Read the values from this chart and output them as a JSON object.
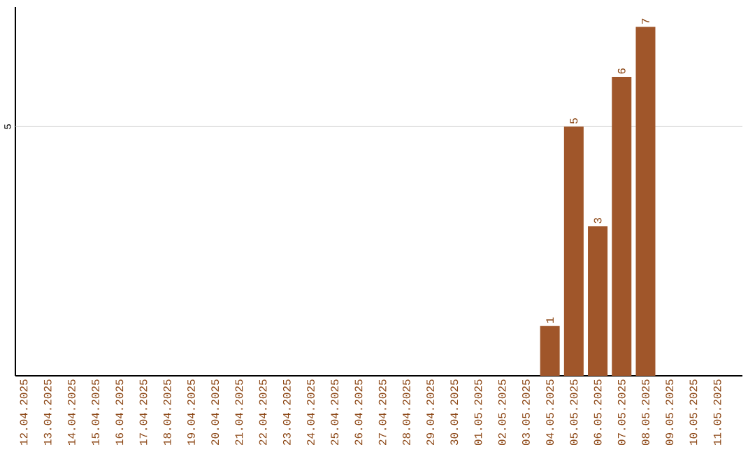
{
  "chart_data": {
    "type": "bar",
    "categories": [
      "12.04.2025",
      "13.04.2025",
      "14.04.2025",
      "15.04.2025",
      "16.04.2025",
      "17.04.2025",
      "18.04.2025",
      "19.04.2025",
      "20.04.2025",
      "21.04.2025",
      "22.04.2025",
      "23.04.2025",
      "24.04.2025",
      "25.04.2025",
      "26.04.2025",
      "27.04.2025",
      "28.04.2025",
      "29.04.2025",
      "30.04.2025",
      "01.05.2025",
      "02.05.2025",
      "03.05.2025",
      "04.05.2025",
      "05.05.2025",
      "06.05.2025",
      "07.05.2025",
      "08.05.2025",
      "09.05.2025",
      "10.05.2025",
      "11.05.2025"
    ],
    "values": [
      null,
      null,
      null,
      null,
      null,
      null,
      null,
      null,
      null,
      null,
      null,
      null,
      null,
      null,
      null,
      null,
      null,
      null,
      null,
      null,
      null,
      null,
      1,
      5,
      3,
      6,
      7,
      null,
      null,
      null
    ],
    "value_labels": [
      null,
      null,
      null,
      null,
      null,
      null,
      null,
      null,
      null,
      null,
      null,
      null,
      null,
      null,
      null,
      null,
      null,
      null,
      null,
      null,
      null,
      null,
      "1",
      "5",
      "3",
      "6",
      "7",
      null,
      null,
      null
    ],
    "ylim": [
      0,
      7.4
    ],
    "color": "#a0562a",
    "ref_lines": [
      {
        "axis": "y",
        "value": 5,
        "label": "5",
        "color": "#cccccc"
      }
    ]
  }
}
